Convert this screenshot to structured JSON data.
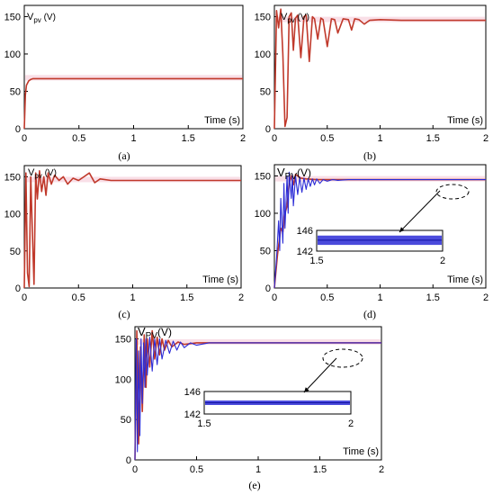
{
  "colors": {
    "red": "#c0392b",
    "blue": "#2b2bd6",
    "pink": "#f2b7c9",
    "axis": "#000000",
    "dashed": "#000000"
  },
  "chart_data": [
    {
      "type": "line",
      "label": "(a)",
      "ylabel": "V",
      "ysub": "pv",
      "yunit": " (V)",
      "xlabel": "Time (s)",
      "xlim": [
        0,
        2
      ],
      "ylim": [
        0,
        150
      ],
      "xticks": [
        "0",
        "0.5",
        "1",
        "1.5",
        "2"
      ],
      "yticks": [
        "0",
        "50",
        "100",
        "150"
      ],
      "ytick_values": [
        0,
        50,
        100,
        150
      ],
      "grid": false,
      "series": [
        {
          "color": "red",
          "x": [
            0,
            0.01,
            0.02,
            0.04,
            0.06,
            0.08,
            0.1,
            2
          ],
          "y": [
            0,
            45,
            58,
            64,
            66,
            67,
            67,
            67
          ]
        }
      ]
    },
    {
      "type": "line",
      "label": "(b)",
      "ylabel": "V",
      "ysub": "pv",
      "yunit": " (V)",
      "xlabel": "Time (s)",
      "xlim": [
        0,
        2
      ],
      "ylim": [
        0,
        150
      ],
      "xticks": [
        "0",
        "0.5",
        "1",
        "1.5",
        "2"
      ],
      "yticks": [
        "0",
        "50",
        "100",
        "150"
      ],
      "ytick_values": [
        0,
        50,
        100,
        150
      ],
      "grid": false,
      "series": [
        {
          "color": "red",
          "x": [
            0,
            0.02,
            0.04,
            0.06,
            0.08,
            0.1,
            0.12,
            0.14,
            0.16,
            0.18,
            0.2,
            0.22,
            0.25,
            0.28,
            0.3,
            0.33,
            0.36,
            0.38,
            0.41,
            0.44,
            0.46,
            0.5,
            0.54,
            0.57,
            0.6,
            0.65,
            0.7,
            0.73,
            0.76,
            0.8,
            0.85,
            0.9,
            1.0,
            1.2,
            1.5,
            2.0
          ],
          "y": [
            0,
            158,
            135,
            160,
            100,
            3,
            15,
            150,
            155,
            105,
            148,
            152,
            95,
            150,
            152,
            90,
            150,
            147,
            120,
            148,
            146,
            110,
            147,
            146,
            128,
            147,
            146,
            132,
            147,
            146,
            140,
            145,
            146,
            145,
            145,
            145
          ]
        }
      ]
    },
    {
      "type": "line",
      "label": "(c)",
      "ylabel": "V",
      "ysub": "pv",
      "yunit": " (V)",
      "xlabel": "Time (s)",
      "xlim": [
        0,
        2
      ],
      "ylim": [
        0,
        150
      ],
      "xticks": [
        "0",
        "0.5",
        "1",
        "1.5",
        "2"
      ],
      "yticks": [
        "0",
        "50",
        "100",
        "150"
      ],
      "ytick_values": [
        0,
        50,
        100,
        150
      ],
      "grid": false,
      "series": [
        {
          "color": "red",
          "x": [
            0,
            0.015,
            0.03,
            0.045,
            0.06,
            0.075,
            0.09,
            0.105,
            0.12,
            0.14,
            0.16,
            0.18,
            0.2,
            0.22,
            0.25,
            0.28,
            0.32,
            0.36,
            0.4,
            0.45,
            0.5,
            0.55,
            0.6,
            0.65,
            0.7,
            0.8,
            1.0,
            1.5,
            2.0
          ],
          "y": [
            0,
            155,
            20,
            2,
            150,
            75,
            5,
            155,
            120,
            158,
            130,
            150,
            125,
            155,
            140,
            152,
            145,
            150,
            140,
            148,
            145,
            150,
            155,
            142,
            147,
            145,
            145,
            145,
            145
          ]
        }
      ]
    },
    {
      "type": "line",
      "label": "(d)",
      "ylabel": "V",
      "ysub": "PV",
      "yunit": "(V)",
      "xlabel": "Time (s)",
      "xlim": [
        0,
        2
      ],
      "ylim": [
        0,
        150
      ],
      "xticks": [
        "0",
        "0.5",
        "1",
        "1.5",
        "2"
      ],
      "yticks": [
        "0",
        "50",
        "100",
        "150"
      ],
      "ytick_values": [
        0,
        50,
        100,
        150
      ],
      "grid": false,
      "series": [
        {
          "color": "red",
          "x": [
            0,
            0.03,
            0.06,
            0.08,
            0.1,
            0.12,
            0.14,
            0.16,
            0.18,
            0.2,
            0.25,
            0.3,
            0.4,
            0.5,
            0.7,
            1.0,
            2.0
          ],
          "y": [
            0,
            45,
            80,
            75,
            100,
            110,
            140,
            150,
            138,
            152,
            147,
            146,
            145,
            145,
            145,
            145,
            145
          ]
        },
        {
          "color": "blue",
          "x": [
            0,
            0.02,
            0.04,
            0.05,
            0.06,
            0.08,
            0.09,
            0.1,
            0.12,
            0.13,
            0.14,
            0.16,
            0.17,
            0.18,
            0.2,
            0.22,
            0.24,
            0.26,
            0.28,
            0.3,
            0.32,
            0.34,
            0.36,
            0.38,
            0.4,
            0.43,
            0.46,
            0.5,
            0.55,
            0.6,
            0.7,
            0.8,
            1.0,
            2.0
          ],
          "y": [
            0,
            40,
            90,
            50,
            120,
            60,
            140,
            80,
            150,
            100,
            155,
            120,
            152,
            110,
            150,
            125,
            148,
            128,
            147,
            132,
            146,
            136,
            146,
            138,
            146,
            140,
            145,
            143,
            145,
            144,
            145,
            145,
            145,
            145
          ]
        }
      ],
      "inset": {
        "xlim": [
          1.5,
          2
        ],
        "ylim": [
          142,
          146
        ],
        "xticks": [
          "1.5",
          "2"
        ],
        "yticks": [
          "146",
          "142"
        ],
        "ytick_values": [
          146,
          142
        ],
        "band": [
          143.2,
          145.0
        ]
      }
    },
    {
      "type": "line",
      "label": "(e)",
      "ylabel": "V",
      "ysub": "PV",
      "yunit": "(V)",
      "xlabel": "Time (s)",
      "xlim": [
        0,
        2
      ],
      "ylim": [
        0,
        150
      ],
      "xticks": [
        "0",
        "0.5",
        "1",
        "1.5",
        "2"
      ],
      "yticks": [
        "0",
        "50",
        "100",
        "150"
      ],
      "ytick_values": [
        0,
        50,
        100,
        150
      ],
      "grid": false,
      "series": [
        {
          "color": "red",
          "x": [
            0,
            0.015,
            0.03,
            0.045,
            0.06,
            0.075,
            0.09,
            0.1,
            0.12,
            0.14,
            0.16,
            0.18,
            0.2,
            0.22,
            0.24,
            0.27,
            0.3,
            0.35,
            0.4,
            0.5,
            0.7,
            1.0,
            2.0
          ],
          "y": [
            0,
            160,
            20,
            140,
            60,
            155,
            90,
            150,
            115,
            160,
            125,
            152,
            130,
            150,
            136,
            148,
            140,
            146,
            143,
            145,
            145,
            145,
            145
          ]
        },
        {
          "color": "blue",
          "x": [
            0,
            0.01,
            0.02,
            0.03,
            0.04,
            0.05,
            0.06,
            0.07,
            0.08,
            0.09,
            0.1,
            0.12,
            0.14,
            0.16,
            0.18,
            0.2,
            0.22,
            0.25,
            0.28,
            0.31,
            0.34,
            0.37,
            0.4,
            0.45,
            0.5,
            0.6,
            0.7,
            1.0,
            2.0
          ],
          "y": [
            0,
            150,
            10,
            135,
            30,
            150,
            70,
            145,
            90,
            150,
            105,
            152,
            110,
            150,
            118,
            150,
            125,
            148,
            132,
            147,
            136,
            146,
            139,
            145,
            142,
            145,
            145,
            145,
            145
          ]
        }
      ],
      "inset": {
        "xlim": [
          1.5,
          2
        ],
        "ylim": [
          142,
          146
        ],
        "xticks": [
          "1.5",
          "2"
        ],
        "yticks": [
          "146",
          "142"
        ],
        "ytick_values": [
          146,
          142
        ],
        "band": [
          143.6,
          144.4
        ]
      }
    }
  ]
}
